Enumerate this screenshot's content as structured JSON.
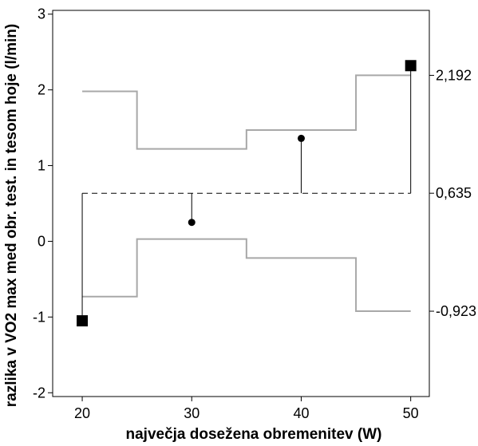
{
  "chart_data": {
    "type": "scatter",
    "title": "",
    "xlabel": "največja dosežena obremenitev (W)",
    "ylabel": "razlika v VO2 max med obr. test. in tesom hoje (l/min)",
    "xlim": [
      17.3,
      51.7
    ],
    "ylim": [
      -2.05,
      3.05
    ],
    "x_ticks": [
      20,
      30,
      40,
      50
    ],
    "y_ticks": [
      -2,
      -1,
      0,
      1,
      2,
      3
    ],
    "x_tick_labels": [
      "20",
      "30",
      "40",
      "50"
    ],
    "y_tick_labels": [
      "-2",
      "-1",
      "0",
      "1",
      "2",
      "3"
    ],
    "grid": false,
    "legend": "none",
    "center_line": {
      "value": 0.635,
      "label": "0,635",
      "style": "dashed",
      "color": "#000000"
    },
    "upper_limit": {
      "label": "2,192",
      "color": "#a8a8a8",
      "steps": [
        {
          "x_start": 20,
          "x_end": 25,
          "y": 1.98
        },
        {
          "x_start": 25,
          "x_end": 35,
          "y": 1.22
        },
        {
          "x_start": 35,
          "x_end": 45,
          "y": 1.47
        },
        {
          "x_start": 45,
          "x_end": 50,
          "y": 2.192
        }
      ]
    },
    "lower_limit": {
      "label": "-0,923",
      "color": "#a8a8a8",
      "steps": [
        {
          "x_start": 20,
          "x_end": 25,
          "y": -0.73
        },
        {
          "x_start": 25,
          "x_end": 35,
          "y": 0.03
        },
        {
          "x_start": 35,
          "x_end": 45,
          "y": -0.22
        },
        {
          "x_start": 45,
          "x_end": 50,
          "y": -0.923
        }
      ]
    },
    "points": [
      {
        "x": 20,
        "y": -1.05,
        "marker": "square"
      },
      {
        "x": 30,
        "y": 0.25,
        "marker": "circle"
      },
      {
        "x": 40,
        "y": 1.36,
        "marker": "circle"
      },
      {
        "x": 50,
        "y": 2.32,
        "marker": "square"
      }
    ],
    "right_labels": [
      "2,192",
      "0,635",
      "-0,923"
    ]
  }
}
